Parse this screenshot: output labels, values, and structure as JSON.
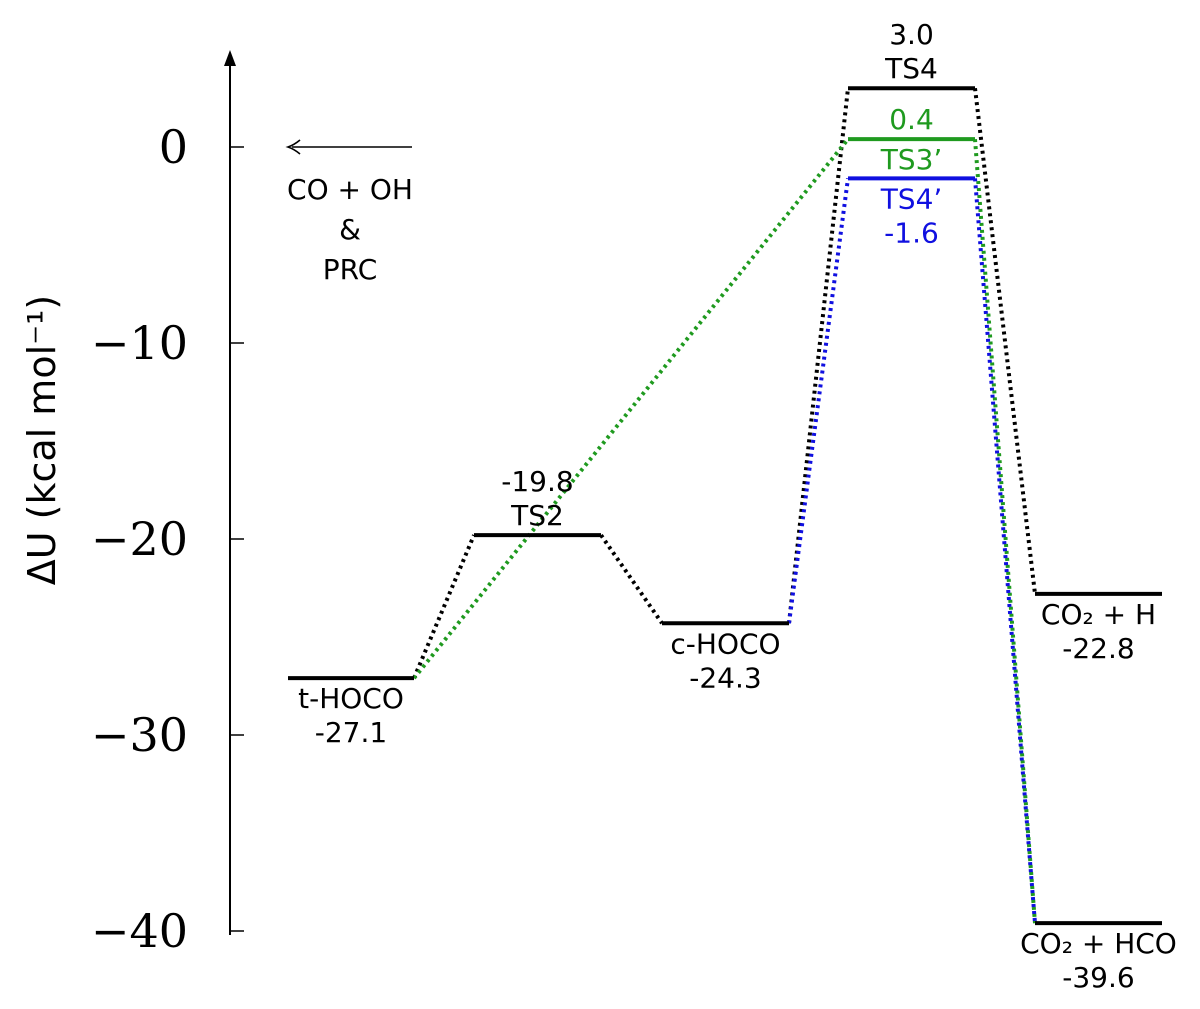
{
  "chart_data": {
    "type": "energy-level-diagram",
    "ylabel": "ΔU (kcal mol⁻¹)",
    "ylim": [
      -40,
      3.0
    ],
    "yticks": [
      0,
      -10,
      -20,
      -30,
      -40
    ],
    "ytick_labels": [
      "0",
      "−10",
      "−20",
      "−30",
      "−40"
    ],
    "colors": {
      "black": "#000000",
      "green": "#1f9a1f",
      "blue": "#1010e0"
    },
    "reference": {
      "value": 0,
      "arrow": "left",
      "lines": [
        "CO + OH",
        "&",
        "PRC"
      ]
    },
    "levels": [
      {
        "id": "t-HOCO",
        "value": -27.1,
        "color": "black",
        "col": 0,
        "lines": [
          "t-HOCO",
          "-27.1"
        ],
        "label_pos": "below"
      },
      {
        "id": "TS2",
        "value": -19.8,
        "color": "black",
        "col": 1,
        "lines": [
          "-19.8",
          "TS2"
        ],
        "label_pos": "above"
      },
      {
        "id": "c-HOCO",
        "value": -24.3,
        "color": "black",
        "col": 2,
        "lines": [
          "c-HOCO",
          "-24.3"
        ],
        "label_pos": "below"
      },
      {
        "id": "TS4",
        "value": 3.0,
        "color": "black",
        "col": 3,
        "lines": [
          "3.0",
          "TS4"
        ],
        "label_pos": "above"
      },
      {
        "id": "TS3'",
        "value": 0.4,
        "color": "green",
        "col": 3,
        "lines": [
          "0.4",
          "TS3’"
        ],
        "label_pos": "split"
      },
      {
        "id": "TS4'",
        "value": -1.6,
        "color": "blue",
        "col": 3,
        "lines": [
          "TS4’",
          "-1.6"
        ],
        "label_pos": "below"
      },
      {
        "id": "CO2+H",
        "value": -22.8,
        "color": "black",
        "col": 4,
        "lines": [
          "CO₂ + H",
          "-22.8"
        ],
        "label_pos": "below"
      },
      {
        "id": "CO2+HCO",
        "value": -39.6,
        "color": "black",
        "col": 4,
        "lines": [
          "CO₂ + HCO",
          "-39.6"
        ],
        "label_pos": "below"
      }
    ],
    "connections": [
      {
        "from": "t-HOCO",
        "to": "TS2",
        "color": "black"
      },
      {
        "from": "TS2",
        "to": "c-HOCO",
        "color": "black"
      },
      {
        "from": "c-HOCO",
        "to": "TS4",
        "color": "black"
      },
      {
        "from": "TS4",
        "to": "CO2+H",
        "color": "black"
      },
      {
        "from": "t-HOCO",
        "to": "TS3'",
        "color": "green"
      },
      {
        "from": "TS3'",
        "to": "CO2+HCO",
        "color": "green"
      },
      {
        "from": "c-HOCO",
        "to": "TS4'",
        "color": "blue"
      },
      {
        "from": "TS4'",
        "to": "CO2+HCO",
        "color": "blue"
      }
    ]
  }
}
